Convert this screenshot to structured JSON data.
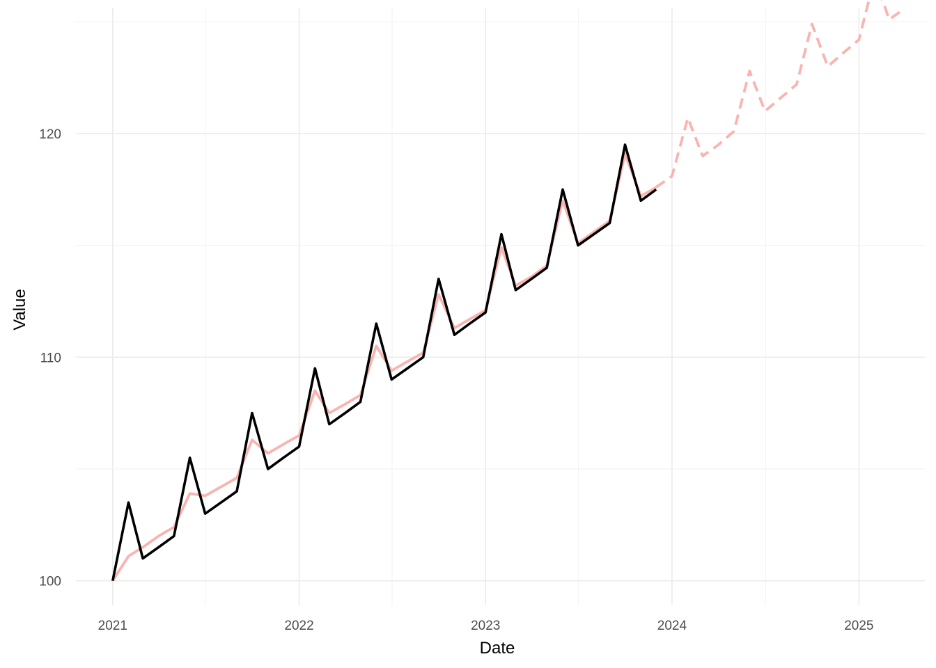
{
  "chart_data": {
    "type": "line",
    "xlabel": "Date",
    "ylabel": "Value",
    "xlim": [
      "2020-10-21",
      "2025-05-10"
    ],
    "ylim": [
      98.9,
      125.6
    ],
    "x_ticks": [
      "2021",
      "2022",
      "2023",
      "2024",
      "2025"
    ],
    "y_ticks": [
      100,
      110,
      120
    ],
    "grid": true,
    "legend": "none",
    "series": [
      {
        "role": "observed",
        "color": "#000000",
        "style": "solid",
        "x": [
          "2021-01-01",
          "2021-02-01",
          "2021-03-01",
          "2021-04-01",
          "2021-05-01",
          "2021-06-01",
          "2021-07-01",
          "2021-08-01",
          "2021-09-01",
          "2021-10-01",
          "2021-11-01",
          "2021-12-01",
          "2022-01-01",
          "2022-02-01",
          "2022-03-01",
          "2022-04-01",
          "2022-05-01",
          "2022-06-01",
          "2022-07-01",
          "2022-08-01",
          "2022-09-01",
          "2022-10-01",
          "2022-11-01",
          "2022-12-01",
          "2023-01-01",
          "2023-02-01",
          "2023-03-01",
          "2023-04-01",
          "2023-05-01",
          "2023-06-01",
          "2023-07-01",
          "2023-08-01",
          "2023-09-01",
          "2023-10-01",
          "2023-11-01",
          "2023-12-01"
        ],
        "y": [
          100.0,
          103.5,
          101.0,
          101.5,
          102.0,
          105.5,
          103.0,
          103.5,
          104.0,
          107.5,
          105.0,
          105.5,
          106.0,
          109.5,
          107.0,
          107.5,
          108.0,
          111.5,
          109.0,
          109.5,
          110.0,
          113.5,
          111.0,
          111.5,
          112.0,
          115.5,
          113.0,
          113.5,
          114.0,
          117.5,
          115.0,
          115.5,
          116.0,
          119.5,
          117.0,
          117.5
        ]
      },
      {
        "role": "fitted",
        "color": "#f8b4b0",
        "style": "solid",
        "x": [
          "2021-01-01",
          "2021-02-01",
          "2021-03-01",
          "2021-04-01",
          "2021-05-01",
          "2021-06-01",
          "2021-07-01",
          "2021-08-01",
          "2021-09-01",
          "2021-10-01",
          "2021-11-01",
          "2021-12-01",
          "2022-01-01",
          "2022-02-01",
          "2022-03-01",
          "2022-04-01",
          "2022-05-01",
          "2022-06-01",
          "2022-07-01",
          "2022-08-01",
          "2022-09-01",
          "2022-10-01",
          "2022-11-01",
          "2022-12-01",
          "2023-01-01",
          "2023-02-01",
          "2023-03-01",
          "2023-04-01",
          "2023-05-01",
          "2023-06-01",
          "2023-07-01",
          "2023-08-01",
          "2023-09-01",
          "2023-10-01",
          "2023-11-01",
          "2023-12-01"
        ],
        "y": [
          100.0,
          101.1,
          101.5,
          102.0,
          102.4,
          103.9,
          103.8,
          104.2,
          104.6,
          106.3,
          105.7,
          106.1,
          106.5,
          108.5,
          107.5,
          107.9,
          108.3,
          110.5,
          109.4,
          109.8,
          110.2,
          112.8,
          111.3,
          111.7,
          112.1,
          114.9,
          113.2,
          113.6,
          114.1,
          117.0,
          115.1,
          115.6,
          116.1,
          119.1,
          117.2,
          117.6
        ]
      },
      {
        "role": "forecast",
        "color": "#f8b4b0",
        "style": "dashed",
        "x": [
          "2023-12-01",
          "2024-01-01",
          "2024-02-01",
          "2024-03-01",
          "2024-04-01",
          "2024-05-01",
          "2024-06-01",
          "2024-07-01",
          "2024-08-01",
          "2024-09-01",
          "2024-10-01",
          "2024-11-01",
          "2024-12-01",
          "2025-01-01",
          "2025-02-01",
          "2025-03-01",
          "2025-04-01"
        ],
        "y": [
          117.6,
          118.1,
          120.7,
          119.0,
          119.5,
          120.1,
          122.8,
          121.0,
          121.6,
          122.2,
          124.9,
          123.0,
          123.6,
          124.2,
          127.0,
          125.1,
          125.6
        ]
      }
    ]
  }
}
